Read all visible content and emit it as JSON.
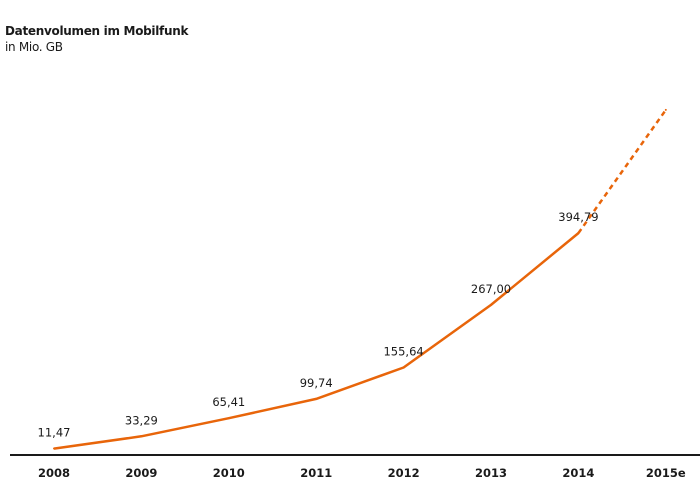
{
  "chart_data": {
    "type": "line",
    "title": "Datenvolumen im Mobilfunk",
    "subtitle": "in Mio. GB",
    "xlabel": "",
    "ylabel": "",
    "categories": [
      "2008",
      "2009",
      "2010",
      "2011",
      "2012",
      "2013",
      "2014",
      "2015e"
    ],
    "series": [
      {
        "name": "Datenvolumen",
        "values": [
          11.47,
          33.29,
          65.41,
          99.74,
          155.64,
          267.0,
          394.79,
          614
        ],
        "labels": [
          "11,47",
          "33,29",
          "65,41",
          "99,74",
          "155,64",
          "267,00",
          "394,79",
          ""
        ],
        "estimated_from_index": 6
      }
    ],
    "ylim": [
      0,
      620
    ],
    "grid": false,
    "legend": "none",
    "color": "#e8650a"
  }
}
